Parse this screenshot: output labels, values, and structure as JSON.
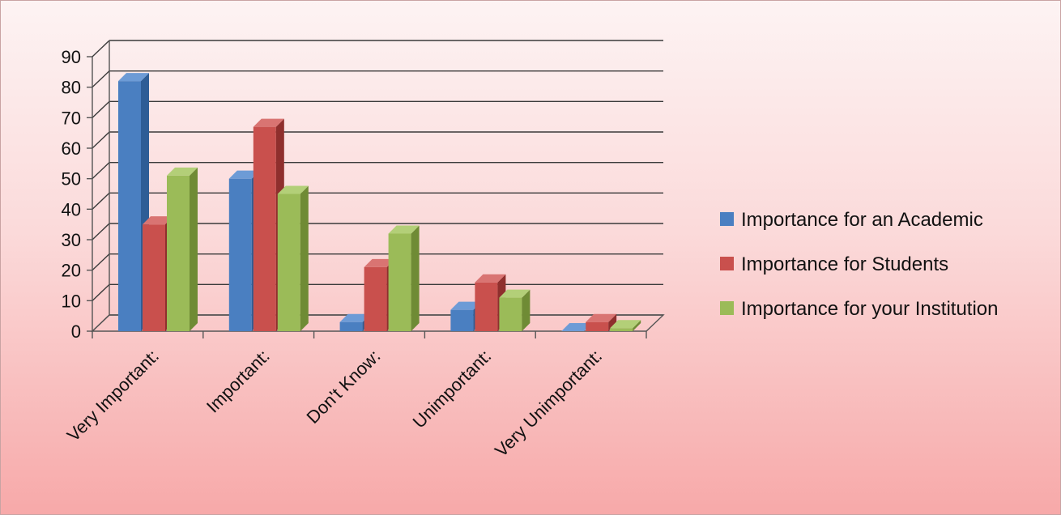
{
  "chart_data": {
    "type": "bar",
    "categories": [
      "Very Important:",
      "Important:",
      "Don't Know:",
      "Unimportant:",
      "Very Unimportant:"
    ],
    "series": [
      {
        "name": "Importance for an Academic",
        "values": [
          82,
          50,
          3,
          7,
          0
        ],
        "color": "#4a7fc1",
        "side": "#2e5d96",
        "top": "#6d9bd6"
      },
      {
        "name": "Importance for Students",
        "values": [
          35,
          67,
          21,
          16,
          3
        ],
        "color": "#c9504d",
        "side": "#8f2f2d",
        "top": "#d97472"
      },
      {
        "name": "Importance for your Institution",
        "values": [
          51,
          45,
          32,
          11,
          1
        ],
        "color": "#9bbb58",
        "side": "#6f8b35",
        "top": "#b3cf78"
      }
    ],
    "ylim": [
      0,
      90
    ],
    "yticks": [
      "0",
      "10",
      "20",
      "30",
      "40",
      "50",
      "60",
      "70",
      "80",
      "90"
    ],
    "grid": true,
    "legend_position": "right"
  }
}
